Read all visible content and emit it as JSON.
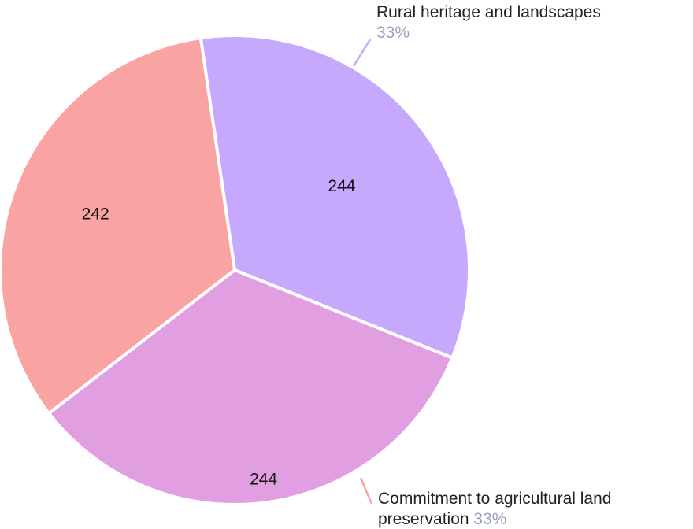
{
  "chart_data": {
    "type": "pie",
    "slices": [
      {
        "label": "Rural heritage and landscapes",
        "value": 244,
        "percent_label": "33%",
        "color": "#c6a8fc"
      },
      {
        "label": "Commitment to agricultural land preservation",
        "value": 242,
        "percent_label": "33%",
        "color": "#f9a3a3"
      },
      {
        "label": "",
        "value": 244,
        "percent_label": "",
        "color": "#e19fe2"
      }
    ]
  }
}
